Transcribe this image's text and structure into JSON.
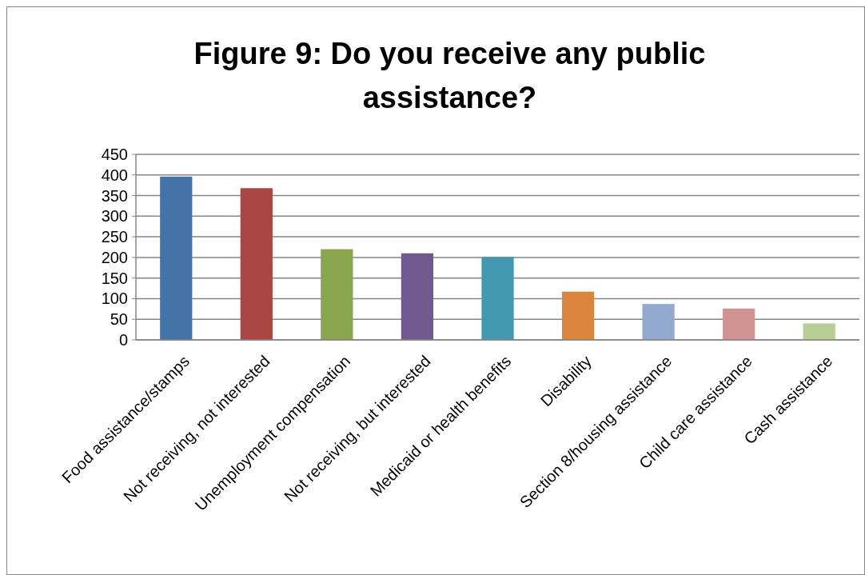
{
  "chart_data": {
    "type": "bar",
    "title": "Figure 9: Do you receive any public assistance?",
    "categories": [
      "Food assistance/stamps",
      "Not receiving, not interested",
      "Unemployment compensation",
      "Not receiving, but interested",
      "Medicaid or health benefits",
      "Disability",
      "Section 8/housing assistance",
      "Child care assistance",
      "Cash assistance"
    ],
    "values": [
      396,
      368,
      220,
      210,
      201,
      117,
      87,
      76,
      40
    ],
    "colors": [
      "#4572a7",
      "#aa4643",
      "#89a54e",
      "#71588f",
      "#4198af",
      "#db843d",
      "#93a9cf",
      "#d19392",
      "#b9cd96"
    ],
    "ylim": [
      0,
      450
    ],
    "yticks": [
      0,
      50,
      100,
      150,
      200,
      250,
      300,
      350,
      400,
      450
    ],
    "grid": "y"
  }
}
